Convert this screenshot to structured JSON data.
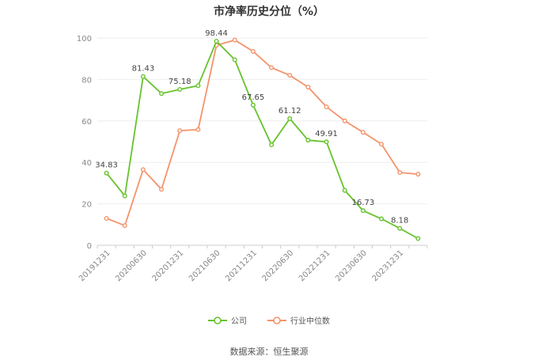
{
  "chart_data": {
    "type": "line",
    "title": "市净率历史分位（%）",
    "x": [
      "20191231",
      "",
      "20200630",
      "",
      "20201231",
      "",
      "20210630",
      "",
      "20211231",
      "",
      "20220630",
      "",
      "20221231",
      "",
      "20230630",
      "",
      "20231231",
      ""
    ],
    "series": [
      {
        "name": "公司",
        "color": "#66c32c",
        "values": [
          34.83,
          23.8,
          81.43,
          73.2,
          75.18,
          77.0,
          98.44,
          89.5,
          67.65,
          48.5,
          61.12,
          50.7,
          49.91,
          26.5,
          16.73,
          12.8,
          8.18,
          3.3
        ],
        "labels": [
          "34.83",
          null,
          "81.43",
          null,
          "75.18",
          null,
          "98.44",
          null,
          "67.65",
          null,
          "61.12",
          null,
          "49.91",
          null,
          "16.73",
          null,
          "8.18",
          null
        ]
      },
      {
        "name": "行业中位数",
        "color": "#f3936c",
        "values": [
          13.0,
          9.5,
          36.5,
          27.0,
          55.3,
          55.8,
          96.5,
          99.0,
          93.5,
          85.7,
          82.0,
          76.3,
          66.8,
          60.0,
          54.5,
          48.8,
          35.1,
          34.3
        ],
        "labels": []
      }
    ],
    "ylim": [
      0,
      100
    ],
    "yticks": [
      0,
      20,
      40,
      60,
      80,
      100
    ],
    "grid": true,
    "legend": "bottom-center"
  },
  "footer": {
    "source": "数据来源：恒生聚源"
  }
}
